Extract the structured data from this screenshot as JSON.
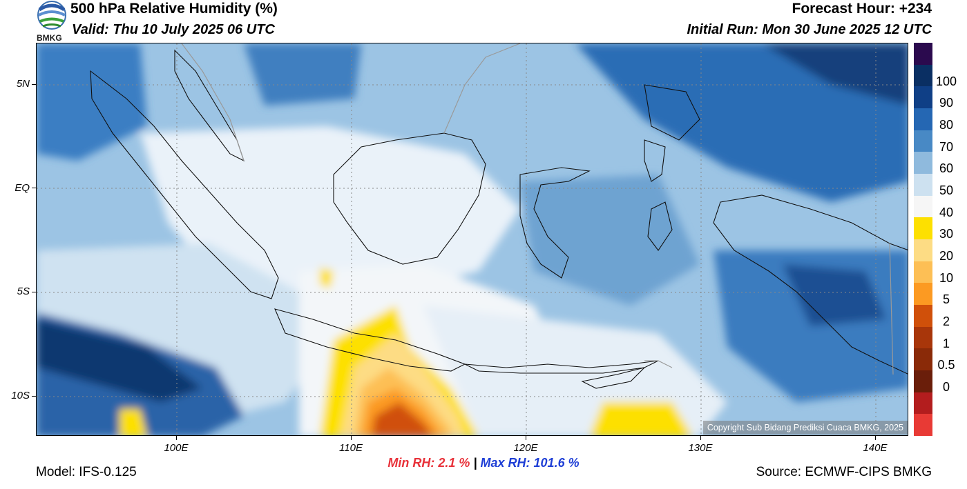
{
  "header": {
    "title": "500 hPa Relative Humidity (%)",
    "valid": "Valid: Thu 10 July 2025 06 UTC",
    "forecast_hour": "Forecast Hour: +234",
    "initial_run": "Initial Run: Mon 30 June 2025 12 UTC",
    "logo_text": "BMKG"
  },
  "axes": {
    "lat_labels": [
      "5N",
      "EQ",
      "5S",
      "10S"
    ],
    "lon_labels": [
      "100E",
      "110E",
      "120E",
      "130E",
      "140E"
    ]
  },
  "colorbar": {
    "labels": [
      "100",
      "90",
      "80",
      "70",
      "60",
      "50",
      "40",
      "30",
      "20",
      "10",
      "5",
      "2",
      "1",
      "0.5",
      "0"
    ],
    "colors": [
      "#2b0a4e",
      "#0a2f63",
      "#0f3f86",
      "#2567b3",
      "#4889c5",
      "#8fbadd",
      "#cde1f0",
      "#f6f6f6",
      "#fde000",
      "#fddc84",
      "#fdbf55",
      "#fc9a22",
      "#d0500a",
      "#a8360a",
      "#8a2a08",
      "#6a1e0a",
      "#b31d1e",
      "#e83a35"
    ]
  },
  "stats": {
    "min_label": "Min RH:",
    "min_value": "2.1 %",
    "separator": "|",
    "max_label": "Max RH:",
    "max_value": "101.6 %"
  },
  "footer": {
    "model": "Model: IFS-0.125",
    "source": "Source: ECMWF-CIPS BMKG",
    "copyright": "Copyright Sub Bidang Prediksi Cuaca BMKG, 2025"
  }
}
